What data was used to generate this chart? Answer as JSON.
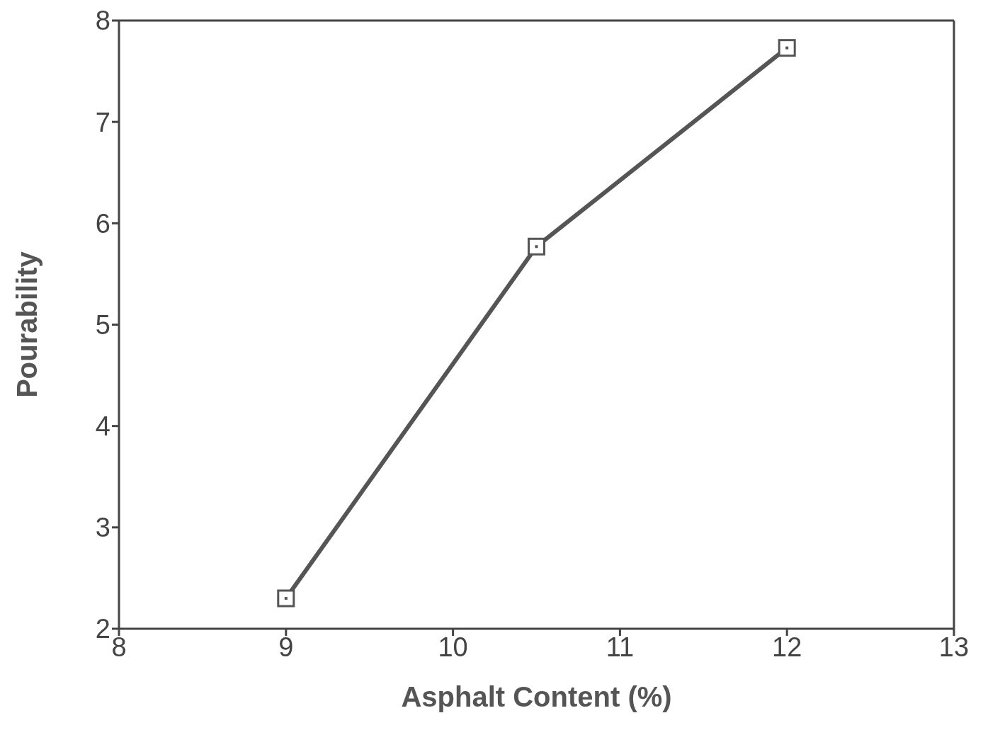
{
  "chart_data": {
    "type": "line",
    "xlabel": "Asphalt Content (%)",
    "ylabel": "Pourability",
    "x": [
      9,
      10.5,
      12
    ],
    "series": [
      {
        "color": "#555555",
        "values": [
          2.3,
          5.77,
          7.73
        ]
      }
    ],
    "xlim": [
      8,
      13
    ],
    "xticks": [
      8,
      9,
      10,
      11,
      12,
      13
    ],
    "ylim": [
      2,
      8
    ],
    "yticks": [
      2,
      3,
      4,
      5,
      6,
      7,
      8
    ],
    "grid": false,
    "marker": "square",
    "line_style": "solid"
  }
}
